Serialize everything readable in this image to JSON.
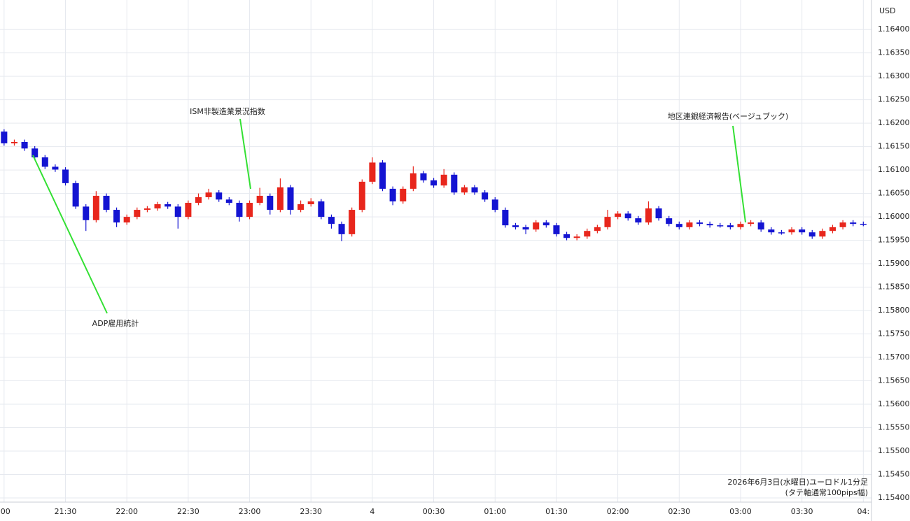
{
  "chart_data": {
    "type": "candlestick",
    "currency": "USD",
    "note": [
      "2026年6月3日(水曜日)ユーロドル1分足",
      "(タテ軸通常100pips幅)"
    ],
    "annotations": [
      "ADP雇用統計",
      "ISM非製造業景況指数",
      "地区連銀経済報告(ベージュブック)"
    ],
    "up_color": "#e8261c",
    "down_color": "#1414d2",
    "grid": true,
    "x": [
      "21:00",
      "21:05",
      "21:10",
      "21:15",
      "21:20",
      "21:25",
      "21:30",
      "21:35",
      "21:40",
      "21:45",
      "21:50",
      "21:55",
      "22:00",
      "22:05",
      "22:10",
      "22:15",
      "22:20",
      "22:25",
      "22:30",
      "22:35",
      "22:40",
      "22:45",
      "22:50",
      "22:55",
      "23:00",
      "23:05",
      "23:10",
      "23:15",
      "23:20",
      "23:25",
      "23:30",
      "23:35",
      "23:40",
      "23:45",
      "23:50",
      "23:55",
      "00:00",
      "00:05",
      "00:10",
      "00:15",
      "00:20",
      "00:25",
      "00:30",
      "00:35",
      "00:40",
      "00:45",
      "00:50",
      "00:55",
      "01:00",
      "01:05",
      "01:10",
      "01:15",
      "01:20",
      "01:25",
      "01:30",
      "01:35",
      "01:40",
      "01:45",
      "01:50",
      "01:55",
      "02:00",
      "02:05",
      "02:10",
      "02:15",
      "02:20",
      "02:25",
      "02:30",
      "02:35",
      "02:40",
      "02:45",
      "02:50",
      "02:55",
      "03:00",
      "03:05",
      "03:10",
      "03:15",
      "03:20",
      "03:25",
      "03:30",
      "03:35",
      "03:40",
      "03:45",
      "03:50",
      "03:55",
      "04:00"
    ],
    "open": [
      1.16182,
      1.16157,
      1.1616,
      1.16146,
      1.16127,
      1.16107,
      1.16101,
      1.16072,
      1.16022,
      1.15993,
      1.16045,
      1.16015,
      1.15988,
      1.16,
      1.16015,
      1.16018,
      1.16027,
      1.16022,
      1.16,
      1.1603,
      1.16042,
      1.16052,
      1.16037,
      1.1603,
      1.16,
      1.1603,
      1.16045,
      1.16015,
      1.16063,
      1.16015,
      1.16027,
      1.16033,
      1.16,
      1.15985,
      1.15963,
      1.16015,
      1.16075,
      1.16116,
      1.1606,
      1.16033,
      1.1606,
      1.16093,
      1.16078,
      1.16067,
      1.1609,
      1.16052,
      1.16063,
      1.16052,
      1.16037,
      1.16015,
      1.15982,
      1.15978,
      1.15973,
      1.15988,
      1.15982,
      1.15963,
      1.15955,
      1.15958,
      1.1597,
      1.15978,
      1.16,
      1.16007,
      1.15997,
      1.15988,
      1.16018,
      1.15997,
      1.15985,
      1.15978,
      1.15988,
      1.15985,
      1.15982,
      1.15982,
      1.15978,
      1.15985,
      1.15988,
      1.15973,
      1.15967,
      1.15967,
      1.15973,
      1.15967,
      1.15958,
      1.1597,
      1.15978,
      1.15988,
      1.15985
    ],
    "high": [
      1.16187,
      1.16165,
      1.16165,
      1.16151,
      1.16132,
      1.16112,
      1.16106,
      1.16077,
      1.16027,
      1.16055,
      1.1605,
      1.1602,
      1.16005,
      1.1602,
      1.16023,
      1.16032,
      1.16032,
      1.16027,
      1.16035,
      1.1605,
      1.1606,
      1.16057,
      1.16042,
      1.16035,
      1.16035,
      1.16062,
      1.1605,
      1.16082,
      1.16068,
      1.16035,
      1.1604,
      1.16038,
      1.16005,
      1.1599,
      1.1602,
      1.1608,
      1.16127,
      1.16121,
      1.16065,
      1.16065,
      1.16108,
      1.16098,
      1.16083,
      1.16102,
      1.16095,
      1.16068,
      1.16068,
      1.16057,
      1.16042,
      1.1602,
      1.15987,
      1.15983,
      1.15993,
      1.15993,
      1.15987,
      1.15968,
      1.15963,
      1.15975,
      1.15983,
      1.16015,
      1.16012,
      1.16012,
      1.16002,
      1.16033,
      1.16023,
      1.16002,
      1.1599,
      1.15993,
      1.15993,
      1.1599,
      1.15987,
      1.15987,
      1.1599,
      1.15993,
      1.15993,
      1.15978,
      1.15972,
      1.15978,
      1.15978,
      1.15972,
      1.15975,
      1.15983,
      1.15993,
      1.15993,
      1.1599
    ],
    "low": [
      1.16152,
      1.16152,
      1.16141,
      1.16122,
      1.16102,
      1.16096,
      1.16067,
      1.16017,
      1.1597,
      1.15988,
      1.1601,
      1.15978,
      1.15983,
      1.15995,
      1.1601,
      1.16013,
      1.16017,
      1.15975,
      1.15995,
      1.16025,
      1.16037,
      1.16032,
      1.16025,
      1.1599,
      1.15995,
      1.16025,
      1.16005,
      1.1601,
      1.16005,
      1.1601,
      1.16022,
      1.15995,
      1.15975,
      1.15948,
      1.15958,
      1.1601,
      1.1607,
      1.16055,
      1.16025,
      1.16028,
      1.16055,
      1.16073,
      1.16062,
      1.16062,
      1.16047,
      1.16047,
      1.16047,
      1.16032,
      1.1601,
      1.15977,
      1.15973,
      1.15963,
      1.15968,
      1.15977,
      1.15958,
      1.1595,
      1.1595,
      1.15953,
      1.15965,
      1.15973,
      1.15995,
      1.15992,
      1.15983,
      1.15983,
      1.15992,
      1.1598,
      1.15973,
      1.15973,
      1.1598,
      1.15977,
      1.15977,
      1.15973,
      1.15973,
      1.1598,
      1.15968,
      1.15962,
      1.15962,
      1.15962,
      1.15962,
      1.15953,
      1.15953,
      1.15965,
      1.15973,
      1.1598,
      1.1598
    ],
    "close": [
      1.16157,
      1.1616,
      1.16146,
      1.16127,
      1.16107,
      1.16101,
      1.16072,
      1.16022,
      1.15993,
      1.16045,
      1.16015,
      1.15988,
      1.16,
      1.16015,
      1.16018,
      1.16027,
      1.16022,
      1.16,
      1.1603,
      1.16042,
      1.16052,
      1.16037,
      1.1603,
      1.16,
      1.1603,
      1.16045,
      1.16015,
      1.16063,
      1.16015,
      1.16027,
      1.16033,
      1.16,
      1.15985,
      1.15963,
      1.16015,
      1.16075,
      1.16116,
      1.1606,
      1.16033,
      1.1606,
      1.16093,
      1.16078,
      1.16067,
      1.1609,
      1.16052,
      1.16063,
      1.16052,
      1.16037,
      1.16015,
      1.15982,
      1.15978,
      1.15973,
      1.15988,
      1.15982,
      1.15963,
      1.15955,
      1.15958,
      1.1597,
      1.15978,
      1.16,
      1.16007,
      1.15997,
      1.15988,
      1.16018,
      1.15997,
      1.15985,
      1.15978,
      1.15988,
      1.15985,
      1.15982,
      1.15982,
      1.15978,
      1.15985,
      1.15988,
      1.15973,
      1.15967,
      1.15967,
      1.15973,
      1.15967,
      1.15958,
      1.1597,
      1.15978,
      1.15988,
      1.15985,
      1.15985
    ],
    "xlim": [
      "20:58",
      "04:04"
    ],
    "xticks": [
      {
        "value": "21:00",
        "label": ":00"
      },
      "21:30",
      "22:00",
      "22:30",
      "23:00",
      "23:30",
      {
        "value": "00:00",
        "label": "4"
      },
      "00:30",
      "01:00",
      "01:30",
      "02:00",
      "02:30",
      "03:00",
      "03:30",
      {
        "value": "04:00",
        "label": "04:"
      }
    ],
    "ylim": [
      1.15391,
      1.16463
    ],
    "yticks": [
      {
        "value": 1.154,
        "label": "1.15400"
      },
      {
        "value": 1.1545,
        "label": "1.15450"
      },
      {
        "value": 1.155,
        "label": "1.15500"
      },
      {
        "value": 1.1555,
        "label": "1.15550"
      },
      {
        "value": 1.156,
        "label": "1.15600"
      },
      {
        "value": 1.1565,
        "label": "1.15650"
      },
      {
        "value": 1.157,
        "label": "1.15700"
      },
      {
        "value": 1.1575,
        "label": "1.15750"
      },
      {
        "value": 1.158,
        "label": "1.15800"
      },
      {
        "value": 1.1585,
        "label": "1.15850"
      },
      {
        "value": 1.159,
        "label": "1.15900"
      },
      {
        "value": 1.1595,
        "label": "1.15950"
      },
      {
        "value": 1.16,
        "label": "1.16000"
      },
      {
        "value": 1.1605,
        "label": "1.16050"
      },
      {
        "value": 1.161,
        "label": "1.16100"
      },
      {
        "value": 1.1615,
        "label": "1.16150"
      },
      {
        "value": 1.162,
        "label": "1.16200"
      },
      {
        "value": 1.1625,
        "label": "1.16250"
      },
      {
        "value": 1.163,
        "label": "1.16300"
      },
      {
        "value": 1.1635,
        "label": "1.16350"
      },
      {
        "value": 1.164,
        "label": "1.16400"
      }
    ]
  }
}
